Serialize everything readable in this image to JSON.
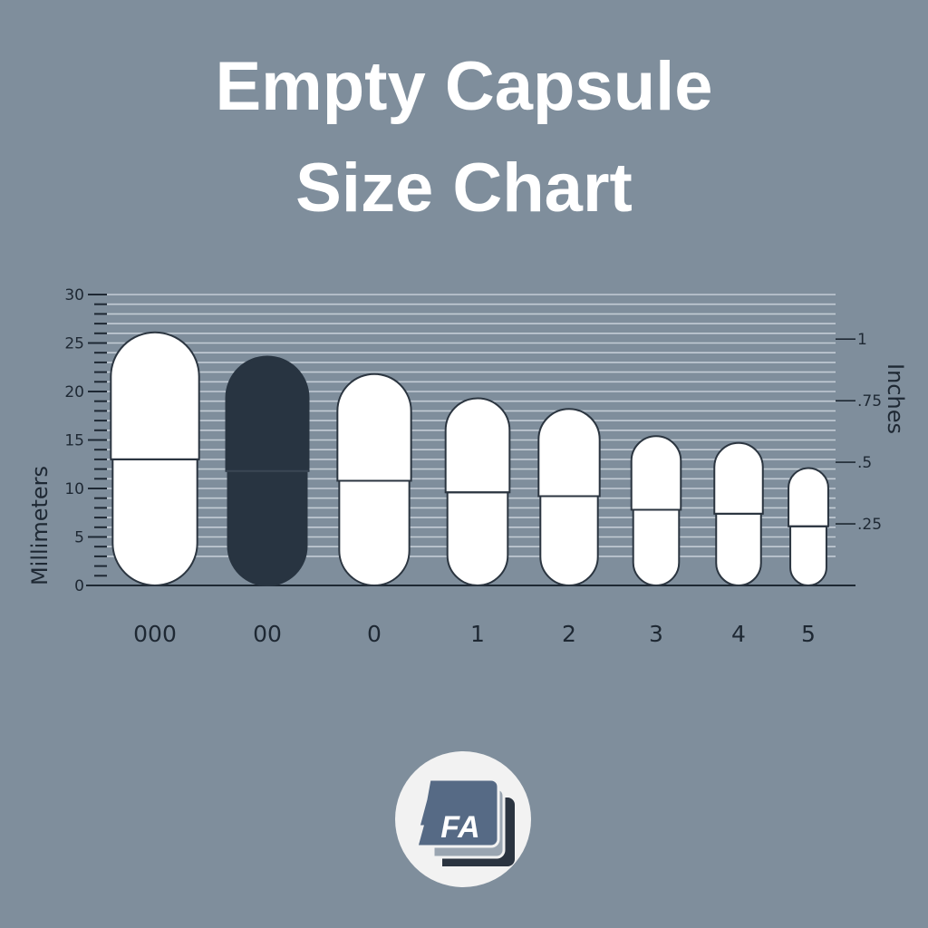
{
  "title_line1": "Empty Capsule",
  "title_line2": "Size Chart",
  "logo_text": "FA",
  "colors": {
    "background": "#7f8e9c",
    "capsule_white": "#ffffff",
    "capsule_dark": "#283441",
    "grid": "#c3ccd5",
    "axis": "#1e2833"
  },
  "chart_data": {
    "type": "bar",
    "title": "Empty Capsule Size Chart",
    "ylabel": "Millimeters",
    "ylabel_right": "Inches",
    "ylim": [
      0,
      30
    ],
    "yticks": [
      0,
      5,
      10,
      15,
      20,
      25,
      30
    ],
    "yticks_right": [
      {
        "label": "1",
        "inches": 1
      },
      {
        "label": ".75",
        "inches": 0.75
      },
      {
        "label": ".5",
        "inches": 0.5
      },
      {
        "label": ".25",
        "inches": 0.25
      }
    ],
    "grid": true,
    "categories": [
      "000",
      "00",
      "0",
      "1",
      "2",
      "3",
      "4",
      "5"
    ],
    "length_mm": [
      26.1,
      23.6,
      21.8,
      19.3,
      18.2,
      15.4,
      14.7,
      12.1
    ],
    "seam_mm": [
      13.0,
      11.8,
      10.8,
      9.6,
      9.2,
      7.8,
      7.4,
      6.1
    ],
    "diameter_mm": [
      9.1,
      8.5,
      7.6,
      6.6,
      6.3,
      5.1,
      5.0,
      4.1
    ],
    "highlight": "00"
  }
}
